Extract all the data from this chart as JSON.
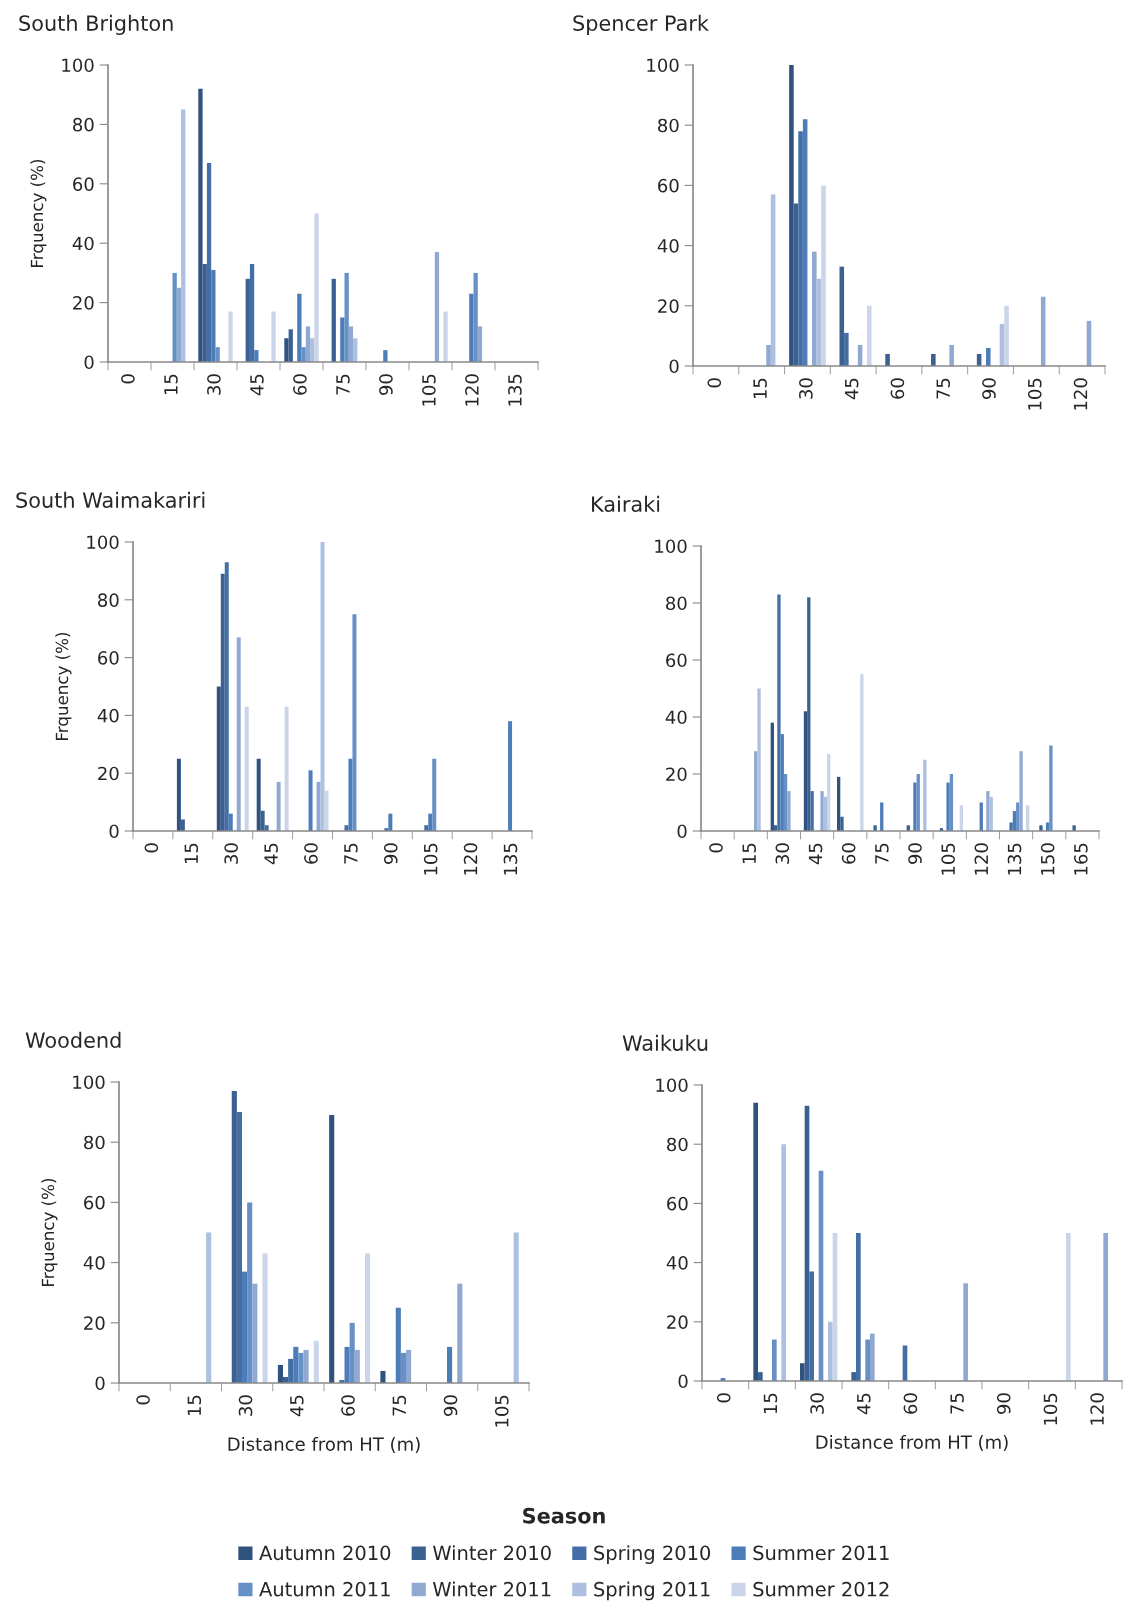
{
  "chart_data": [
    {
      "type": "bar",
      "title": "South Brighton",
      "ylabel": "Frquency (%)",
      "legend": "bottom",
      "legend_title": "Season",
      "categories": [
        "0",
        "15",
        "30",
        "45",
        "60",
        "75",
        "90",
        "105",
        "120",
        "135"
      ],
      "ylim": [
        0,
        100
      ],
      "yticks": [
        0,
        20,
        40,
        60,
        80,
        100
      ],
      "series": [
        {
          "name": "Autumn 2010",
          "color": "#30527f",
          "values": [
            0,
            0,
            92,
            0,
            8,
            0,
            0,
            0,
            0,
            0
          ]
        },
        {
          "name": "Winter 2010",
          "color": "#3b6190",
          "values": [
            0,
            0,
            33,
            28,
            11,
            28,
            0,
            0,
            0,
            0
          ]
        },
        {
          "name": "Spring 2010",
          "color": "#446fa6",
          "values": [
            0,
            0,
            67,
            33,
            0,
            0,
            0,
            0,
            0,
            0
          ]
        },
        {
          "name": "Summer 2011",
          "color": "#4d7db8",
          "values": [
            0,
            0,
            31,
            4,
            23,
            15,
            4,
            0,
            23,
            0
          ]
        },
        {
          "name": "Autumn 2011",
          "color": "#6790c6",
          "values": [
            0,
            30,
            5,
            0,
            5,
            30,
            0,
            0,
            30,
            0
          ]
        },
        {
          "name": "Winter 2011",
          "color": "#8fa9d3",
          "values": [
            0,
            25,
            0,
            0,
            12,
            12,
            0,
            37,
            12,
            0
          ]
        },
        {
          "name": "Spring 2011",
          "color": "#adc0e0",
          "values": [
            0,
            85,
            0,
            0,
            8,
            8,
            0,
            0,
            0,
            0
          ]
        },
        {
          "name": "Summer 2012",
          "color": "#cad5ea",
          "values": [
            0,
            0,
            17,
            17,
            50,
            0,
            0,
            17,
            0,
            0
          ]
        }
      ]
    },
    {
      "type": "bar",
      "title": "Spencer Park",
      "categories": [
        "0",
        "15",
        "30",
        "45",
        "60",
        "75",
        "90",
        "105",
        "120"
      ],
      "ylim": [
        0,
        100
      ],
      "yticks": [
        0,
        20,
        40,
        60,
        80,
        100
      ],
      "series": [
        {
          "color": "#30527f",
          "values": [
            0,
            0,
            100,
            0,
            0,
            0,
            0,
            0,
            0
          ]
        },
        {
          "color": "#3b6190",
          "values": [
            0,
            0,
            54,
            33,
            4,
            4,
            4,
            0,
            0
          ]
        },
        {
          "color": "#446fa6",
          "values": [
            0,
            0,
            78,
            11,
            0,
            0,
            0,
            0,
            0
          ]
        },
        {
          "color": "#4d7db8",
          "values": [
            0,
            0,
            82,
            0,
            0,
            0,
            6,
            0,
            0
          ]
        },
        {
          "color": "#6790c6",
          "values": [
            0,
            0,
            0,
            0,
            0,
            0,
            0,
            0,
            0
          ]
        },
        {
          "color": "#8fa9d3",
          "values": [
            0,
            7,
            38,
            7,
            0,
            7,
            0,
            23,
            15
          ]
        },
        {
          "color": "#adc0e0",
          "values": [
            0,
            57,
            29,
            0,
            0,
            0,
            14,
            0,
            0
          ]
        },
        {
          "color": "#cad5ea",
          "values": [
            0,
            0,
            60,
            20,
            0,
            0,
            20,
            0,
            0
          ]
        }
      ]
    },
    {
      "type": "bar",
      "title": "South Waimakariri",
      "ylabel": "Frquency (%)",
      "categories": [
        "0",
        "15",
        "30",
        "45",
        "60",
        "75",
        "90",
        "105",
        "120",
        "135"
      ],
      "ylim": [
        0,
        100
      ],
      "yticks": [
        0,
        20,
        40,
        60,
        80,
        100
      ],
      "series": [
        {
          "color": "#30527f",
          "values": [
            0,
            25,
            50,
            25,
            0,
            0,
            0,
            0,
            0,
            0
          ]
        },
        {
          "color": "#3b6190",
          "values": [
            0,
            4,
            89,
            7,
            0,
            0,
            0,
            0,
            0,
            0
          ]
        },
        {
          "color": "#446fa6",
          "values": [
            0,
            0,
            93,
            2,
            0,
            2,
            1,
            2,
            0,
            0
          ]
        },
        {
          "color": "#4d7db8",
          "values": [
            0,
            0,
            6,
            0,
            21,
            25,
            6,
            6,
            0,
            38
          ]
        },
        {
          "color": "#6790c6",
          "values": [
            0,
            0,
            0,
            0,
            0,
            75,
            0,
            25,
            0,
            0
          ]
        },
        {
          "color": "#8fa9d3",
          "values": [
            0,
            0,
            67,
            17,
            17,
            0,
            0,
            0,
            0,
            0
          ]
        },
        {
          "color": "#adc0e0",
          "values": [
            0,
            0,
            0,
            0,
            100,
            0,
            0,
            0,
            0,
            0
          ]
        },
        {
          "color": "#cad5ea",
          "values": [
            0,
            0,
            43,
            43,
            14,
            0,
            0,
            0,
            0,
            0
          ]
        }
      ]
    },
    {
      "type": "bar",
      "title": "Kairaki",
      "categories": [
        "0",
        "15",
        "30",
        "45",
        "60",
        "75",
        "90",
        "105",
        "120",
        "135",
        "150",
        "165"
      ],
      "ylim": [
        0,
        100
      ],
      "yticks": [
        0,
        20,
        40,
        60,
        80,
        100
      ],
      "series": [
        {
          "color": "#30527f",
          "values": [
            0,
            0,
            38,
            42,
            19,
            0,
            0,
            0,
            0,
            0,
            0,
            0
          ]
        },
        {
          "color": "#3b6190",
          "values": [
            0,
            0,
            2,
            82,
            5,
            2,
            2,
            1,
            0,
            0,
            2,
            2
          ]
        },
        {
          "color": "#446fa6",
          "values": [
            0,
            0,
            83,
            14,
            0,
            0,
            0,
            0,
            0,
            3,
            0,
            0
          ]
        },
        {
          "color": "#4d7db8",
          "values": [
            0,
            0,
            34,
            0,
            0,
            10,
            17,
            17,
            10,
            7,
            3,
            0
          ]
        },
        {
          "color": "#6790c6",
          "values": [
            0,
            0,
            20,
            0,
            0,
            0,
            20,
            20,
            0,
            10,
            30,
            0
          ]
        },
        {
          "color": "#8fa9d3",
          "values": [
            0,
            28,
            14,
            14,
            0,
            0,
            0,
            0,
            14,
            28,
            0,
            0
          ]
        },
        {
          "color": "#adc0e0",
          "values": [
            0,
            50,
            0,
            12,
            0,
            0,
            25,
            0,
            12,
            0,
            0,
            0
          ]
        },
        {
          "color": "#cad5ea",
          "values": [
            0,
            0,
            0,
            27,
            55,
            0,
            0,
            9,
            0,
            9,
            0,
            0
          ]
        }
      ]
    },
    {
      "type": "bar",
      "title": "Woodend",
      "ylabel": "Frquency (%)",
      "xlabel": "Distance from HT (m)",
      "categories": [
        "0",
        "15",
        "30",
        "45",
        "60",
        "75",
        "90",
        "105"
      ],
      "ylim": [
        0,
        100
      ],
      "yticks": [
        0,
        20,
        40,
        60,
        80,
        100
      ],
      "series": [
        {
          "color": "#30527f",
          "values": [
            0,
            0,
            0,
            6,
            89,
            4,
            0,
            0
          ]
        },
        {
          "color": "#3b6190",
          "values": [
            0,
            0,
            97,
            2,
            0,
            0,
            0,
            0
          ]
        },
        {
          "color": "#446fa6",
          "values": [
            0,
            0,
            90,
            8,
            1,
            0,
            0,
            0
          ]
        },
        {
          "color": "#4d7db8",
          "values": [
            0,
            0,
            37,
            12,
            12,
            25,
            12,
            0
          ]
        },
        {
          "color": "#6790c6",
          "values": [
            0,
            0,
            60,
            10,
            20,
            10,
            0,
            0
          ]
        },
        {
          "color": "#8fa9d3",
          "values": [
            0,
            0,
            33,
            11,
            11,
            11,
            33,
            0
          ]
        },
        {
          "color": "#adc0e0",
          "values": [
            0,
            50,
            0,
            0,
            0,
            0,
            0,
            50
          ]
        },
        {
          "color": "#cad5ea",
          "values": [
            0,
            0,
            43,
            14,
            43,
            0,
            0,
            0
          ]
        }
      ]
    },
    {
      "type": "bar",
      "title": "Waikuku",
      "xlabel": "Distance from HT (m)",
      "categories": [
        "0",
        "15",
        "30",
        "45",
        "60",
        "75",
        "90",
        "105",
        "120"
      ],
      "ylim": [
        0,
        100
      ],
      "yticks": [
        0,
        20,
        40,
        60,
        80,
        100
      ],
      "series": [
        {
          "color": "#30527f",
          "values": [
            0,
            94,
            6,
            0,
            0,
            0,
            0,
            0,
            0
          ]
        },
        {
          "color": "#3b6190",
          "values": [
            0,
            3,
            93,
            3,
            0,
            0,
            0,
            0,
            0
          ]
        },
        {
          "color": "#446fa6",
          "values": [
            0,
            0,
            37,
            50,
            12,
            0,
            0,
            0,
            0
          ]
        },
        {
          "color": "#4d7db8",
          "values": [
            1,
            0,
            0,
            0,
            0,
            0,
            0,
            0,
            0
          ]
        },
        {
          "color": "#6790c6",
          "values": [
            0,
            14,
            71,
            14,
            0,
            0,
            0,
            0,
            0
          ]
        },
        {
          "color": "#8fa9d3",
          "values": [
            0,
            0,
            0,
            16,
            0,
            33,
            0,
            0,
            50
          ]
        },
        {
          "color": "#adc0e0",
          "values": [
            0,
            80,
            20,
            0,
            0,
            0,
            0,
            0,
            0
          ]
        },
        {
          "color": "#cad5ea",
          "values": [
            0,
            0,
            50,
            0,
            0,
            0,
            0,
            50,
            0
          ]
        }
      ]
    }
  ]
}
